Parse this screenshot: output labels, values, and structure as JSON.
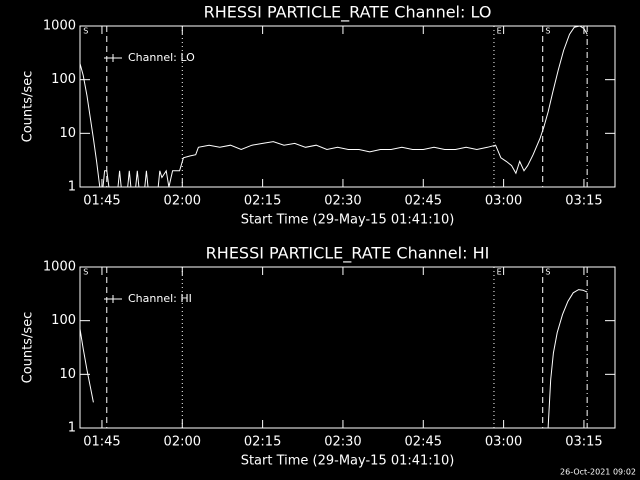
{
  "footer": "26-Oct-2021 09:02",
  "chart_data": [
    {
      "type": "line",
      "title": "RHESSI PARTICLE_RATE Channel: LO",
      "xlabel": "Start Time (29-May-15 01:41:10)",
      "ylabel": "Counts/sec",
      "log_y": true,
      "legend": "upper left",
      "xlim": [
        100.9,
        200.8
      ],
      "xticks": [
        {
          "value": 105,
          "label": "01:45"
        },
        {
          "value": 120,
          "label": "02:00"
        },
        {
          "value": 135,
          "label": "02:15"
        },
        {
          "value": 150,
          "label": "02:30"
        },
        {
          "value": 165,
          "label": "02:45"
        },
        {
          "value": 180,
          "label": "03:00"
        },
        {
          "value": 195,
          "label": "03:15"
        }
      ],
      "ylim": [
        1,
        1000
      ],
      "yticks": [
        1,
        10,
        100,
        1000
      ],
      "markers": [
        {
          "x": 105.9,
          "style": "dashed"
        },
        {
          "x": 120,
          "style": "dotted"
        },
        {
          "x": 178.2,
          "style": "dotted"
        },
        {
          "x": 187.3,
          "style": "dashed"
        },
        {
          "x": 195.6,
          "style": "dashdot"
        }
      ],
      "annotations": [
        {
          "text": "S",
          "x": 101.5
        },
        {
          "text": "E",
          "x": 178.7
        },
        {
          "text": "S",
          "x": 187.8
        }
      ],
      "series": [
        {
          "name": "Channel: LO",
          "color": "#ffffff",
          "x": [
            100.9,
            101.5,
            102.2,
            102.8,
            103.4,
            104.0,
            104.6,
            105.2,
            105.5,
            105.9,
            106.3,
            108.0,
            108.3,
            108.6,
            109.8,
            110.1,
            110.4,
            111.3,
            111.6,
            111.9,
            113.0,
            113.3,
            113.6,
            115.5,
            115.8,
            116.2,
            117.0,
            117.5,
            118.2,
            119.5,
            120.2,
            121.5,
            122.5,
            123,
            125,
            127,
            129,
            131,
            133,
            135,
            137,
            139,
            141,
            143,
            145,
            147,
            149,
            151,
            153,
            155,
            157,
            159,
            161,
            163,
            165,
            167,
            169,
            171,
            173,
            175,
            177,
            178.5,
            179.5,
            180.5,
            181.5,
            182.3,
            183,
            183.8,
            184.5,
            185.5,
            186.8,
            187.5,
            188.3,
            189.2,
            190.2,
            191.2,
            192.3,
            193.2,
            194.2,
            195,
            195.6
          ],
          "values": [
            200,
            120,
            50,
            20,
            8,
            3,
            1,
            1,
            2,
            2,
            1,
            1,
            2,
            1,
            1,
            2,
            1,
            1,
            2,
            1,
            1,
            2,
            1,
            1,
            2,
            1.5,
            2,
            1,
            2,
            2,
            3.5,
            3.8,
            4,
            5.5,
            6,
            5.5,
            6,
            5,
            6,
            6.5,
            7,
            6,
            6.5,
            5.5,
            6,
            5,
            5.5,
            5,
            5,
            4.5,
            5,
            5,
            5.5,
            5,
            5,
            5.5,
            5,
            5,
            5.5,
            5,
            5.5,
            6,
            3.5,
            3,
            2.5,
            1.8,
            3,
            2,
            2.5,
            4,
            8,
            13,
            25,
            60,
            150,
            350,
            700,
            950,
            1000,
            900,
            700
          ]
        }
      ]
    },
    {
      "type": "line",
      "title": "RHESSI PARTICLE_RATE Channel: HI",
      "xlabel": "Start Time (29-May-15 01:41:10)",
      "ylabel": "Counts/sec",
      "log_y": true,
      "legend": "upper left",
      "xlim": [
        100.9,
        200.8
      ],
      "xticks": [
        {
          "value": 105,
          "label": "01:45"
        },
        {
          "value": 120,
          "label": "02:00"
        },
        {
          "value": 135,
          "label": "02:15"
        },
        {
          "value": 150,
          "label": "02:30"
        },
        {
          "value": 165,
          "label": "02:45"
        },
        {
          "value": 180,
          "label": "03:00"
        },
        {
          "value": 195,
          "label": "03:15"
        }
      ],
      "ylim": [
        1,
        1000
      ],
      "yticks": [
        1,
        10,
        100,
        1000
      ],
      "markers": [
        {
          "x": 105.9,
          "style": "dashed"
        },
        {
          "x": 120,
          "style": "dotted"
        },
        {
          "x": 178.2,
          "style": "dotted"
        },
        {
          "x": 187.3,
          "style": "dashed"
        },
        {
          "x": 195.6,
          "style": "dashdot"
        }
      ],
      "annotations": [
        {
          "text": "S",
          "x": 101.5
        },
        {
          "text": "E",
          "x": 178.7
        },
        {
          "text": "S",
          "x": 187.8
        }
      ],
      "series": [
        {
          "name": "Channel: HI",
          "color": "#ffffff",
          "x": [
            100.9,
            101.5,
            102.2,
            102.8,
            103.4,
            null,
            188.3,
            188.8,
            189.3,
            190,
            191,
            192,
            193,
            194,
            194.8,
            195.6
          ],
          "values": [
            70,
            30,
            12,
            6,
            3,
            null,
            1,
            8,
            25,
            60,
            130,
            230,
            330,
            380,
            370,
            340
          ]
        }
      ]
    }
  ]
}
